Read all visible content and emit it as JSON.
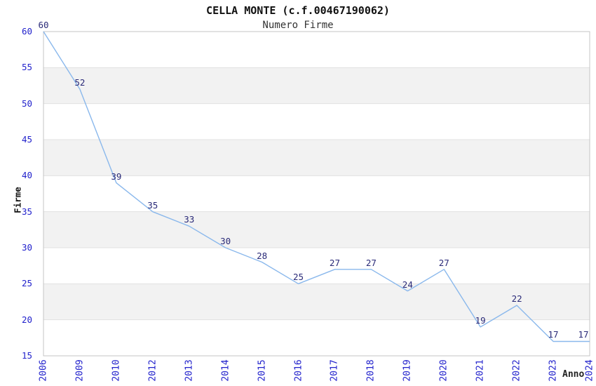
{
  "chart_data": {
    "type": "line",
    "title": "CELLA MONTE (c.f.00467190062)",
    "subtitle": "Numero Firme",
    "xlabel": "Anno",
    "ylabel": "Firme",
    "categories": [
      "2006",
      "2009",
      "2010",
      "2012",
      "2013",
      "2014",
      "2015",
      "2016",
      "2017",
      "2018",
      "2019",
      "2020",
      "2021",
      "2022",
      "2023",
      "2024"
    ],
    "values": [
      60,
      52,
      39,
      35,
      33,
      30,
      28,
      25,
      27,
      27,
      24,
      27,
      19,
      22,
      17,
      17
    ],
    "ylim": [
      15,
      60
    ],
    "ytick_step": 5,
    "grid": "horizontal-bands",
    "legend": "none",
    "data_labels_shown": true,
    "colors": {
      "line": "#8ab8ec",
      "tick_label": "#2222cc",
      "data_label": "#2a2a78",
      "band_fill": "#f2f2f2",
      "gridline": "#e1e1e1",
      "plot_border": "#c4c4c4",
      "title": "#111111",
      "subtitle": "#333333",
      "axis_title": "#222222"
    }
  }
}
